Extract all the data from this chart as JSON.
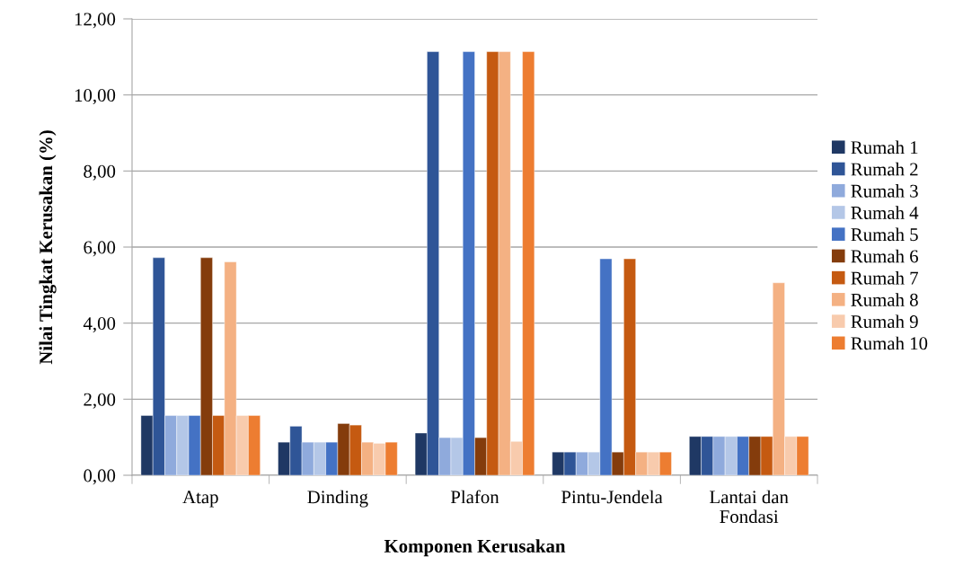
{
  "chart_data": {
    "type": "bar",
    "xlabel": "Komponen Kerusakan",
    "ylabel": "Nilai Tingkat Kerusakan (%)",
    "categories": [
      "Atap",
      "Dinding",
      "Plafon",
      "Pintu-Jendela",
      "Lantai dan Fondasi"
    ],
    "series": [
      {
        "name": "Rumah 1",
        "color": "#1f3864",
        "values": [
          1.57,
          0.87,
          1.11,
          0.61,
          1.02
        ]
      },
      {
        "name": "Rumah 2",
        "color": "#2f5597",
        "values": [
          5.72,
          1.29,
          11.14,
          0.61,
          1.02
        ]
      },
      {
        "name": "Rumah 3",
        "color": "#8faadc",
        "values": [
          1.57,
          0.87,
          0.99,
          0.61,
          1.02
        ]
      },
      {
        "name": "Rumah 4",
        "color": "#b4c7e7",
        "values": [
          1.57,
          0.87,
          0.99,
          0.61,
          1.02
        ]
      },
      {
        "name": "Rumah 5",
        "color": "#4472c4",
        "values": [
          1.57,
          0.87,
          11.14,
          5.69,
          1.02
        ]
      },
      {
        "name": "Rumah 6",
        "color": "#843c0c",
        "values": [
          5.72,
          1.36,
          0.99,
          0.61,
          1.02
        ]
      },
      {
        "name": "Rumah 7",
        "color": "#c55a11",
        "values": [
          1.57,
          1.32,
          11.14,
          5.69,
          1.02
        ]
      },
      {
        "name": "Rumah 8",
        "color": "#f4b183",
        "values": [
          5.61,
          0.87,
          11.14,
          0.61,
          5.06
        ]
      },
      {
        "name": "Rumah 9",
        "color": "#f8cbad",
        "values": [
          1.57,
          0.84,
          0.89,
          0.61,
          1.02
        ]
      },
      {
        "name": "Rumah 10",
        "color": "#ed7d31",
        "values": [
          1.57,
          0.87,
          11.14,
          0.61,
          1.02
        ]
      }
    ],
    "ylim": [
      0,
      12
    ],
    "yticks": [
      {
        "value": 0,
        "label": "0,00"
      },
      {
        "value": 2,
        "label": "2,00"
      },
      {
        "value": 4,
        "label": "4,00"
      },
      {
        "value": 6,
        "label": "6,00"
      },
      {
        "value": 8,
        "label": "8,00"
      },
      {
        "value": 10,
        "label": "10,00"
      },
      {
        "value": 12,
        "label": "12,00"
      }
    ],
    "grid": "y",
    "legend": "right"
  }
}
